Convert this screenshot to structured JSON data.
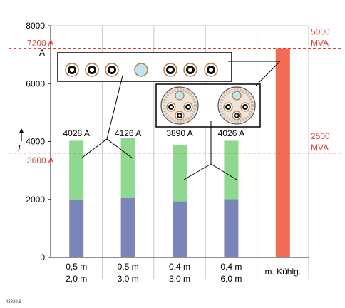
{
  "chart_data": {
    "type": "bar",
    "ylim": [
      0,
      8000
    ],
    "y_ticks": [
      "0",
      "2000",
      "4000",
      "6000",
      "8000"
    ],
    "y_tick_values": [
      0,
      2000,
      4000,
      6000,
      8000
    ],
    "y_axis_symbol": "I",
    "y_axis_unit": "A",
    "grid": "vertical",
    "categories": [
      {
        "line1": "0,5 m",
        "line2": "2,0 m"
      },
      {
        "line1": "0,5 m",
        "line2": "3,0 m"
      },
      {
        "line1": "0,4 m",
        "line2": "3,0 m"
      },
      {
        "line1": "0,4 m",
        "line2": "6,0 m"
      },
      {
        "line1": "m. Kühlg.",
        "line2": ""
      }
    ],
    "series": [
      {
        "values": [
          2000,
          2050,
          1930,
          2010,
          null
        ],
        "color": "#7b86b8"
      },
      {
        "values": [
          2028,
          2076,
          1960,
          2016,
          null
        ],
        "color": "#8fd88f"
      },
      {
        "values": [
          null,
          null,
          null,
          null,
          7200
        ],
        "color": "#f26b55"
      }
    ],
    "bar_labels": [
      "4028  A",
      "4126 A",
      "3890 A",
      "4026 A",
      ""
    ],
    "reference_lines": [
      {
        "value": 7200,
        "label": "7200 A",
        "right_label_1": "5000",
        "right_label_2": "MVA"
      },
      {
        "value": 3600,
        "label": "3600 A",
        "right_label_1": "2500",
        "right_label_2": "MVA"
      }
    ],
    "figure_id": "43339.8",
    "colors": {
      "reference": "#d9413a",
      "grid": "#c8c8c8",
      "axis": "#222222"
    }
  }
}
